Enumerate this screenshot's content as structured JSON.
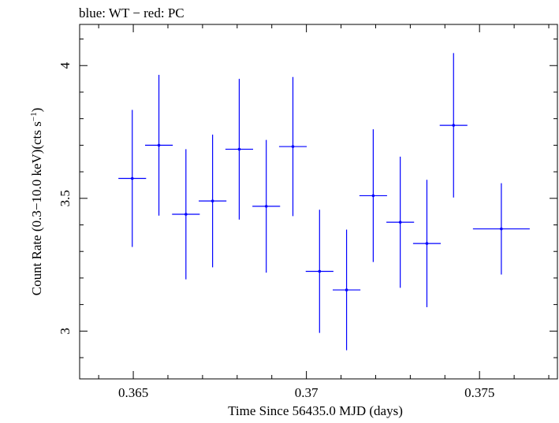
{
  "chart_data": {
    "type": "scatter",
    "title": "blue: WT − red: PC",
    "xlabel": "Time Since 56435.0 MJD (days)",
    "ylabel_main": "Count Rate (0.3−10.0 keV)(cts s",
    "ylabel_sup": "−1",
    "ylabel_tail": ")",
    "xlim": [
      0.36345,
      0.37725
    ],
    "ylim": [
      2.82,
      4.155
    ],
    "x_ticks": [
      0.365,
      0.37,
      0.375
    ],
    "x_tick_labels": [
      "0.365",
      "0.37",
      "0.375"
    ],
    "y_ticks": [
      3,
      3.5,
      4
    ],
    "y_tick_labels": [
      "3",
      "3.5",
      "4"
    ],
    "x_minor_step": 0.001,
    "y_minor_step": 0.1,
    "series": [
      {
        "color": "#0000ff",
        "points": [
          {
            "x": 0.36497,
            "xerr": 0.0004,
            "y": 3.575,
            "yerr": 0.258
          },
          {
            "x": 0.36574,
            "xerr": 0.0004,
            "y": 3.7,
            "yerr": 0.265
          },
          {
            "x": 0.36652,
            "xerr": 0.0004,
            "y": 3.44,
            "yerr": 0.245
          },
          {
            "x": 0.36729,
            "xerr": 0.0004,
            "y": 3.49,
            "yerr": 0.25
          },
          {
            "x": 0.36806,
            "xerr": 0.0004,
            "y": 3.685,
            "yerr": 0.265
          },
          {
            "x": 0.36884,
            "xerr": 0.0004,
            "y": 3.47,
            "yerr": 0.25
          },
          {
            "x": 0.36961,
            "xerr": 0.0004,
            "y": 3.695,
            "yerr": 0.262
          },
          {
            "x": 0.37038,
            "xerr": 0.0004,
            "y": 3.225,
            "yerr": 0.232
          },
          {
            "x": 0.37116,
            "xerr": 0.0004,
            "y": 3.155,
            "yerr": 0.227
          },
          {
            "x": 0.37193,
            "xerr": 0.0004,
            "y": 3.51,
            "yerr": 0.25
          },
          {
            "x": 0.37271,
            "xerr": 0.0004,
            "y": 3.41,
            "yerr": 0.247
          },
          {
            "x": 0.37348,
            "xerr": 0.0004,
            "y": 3.33,
            "yerr": 0.24
          },
          {
            "x": 0.37425,
            "xerr": 0.0004,
            "y": 3.775,
            "yerr": 0.272
          },
          {
            "x": 0.37563,
            "xerr": 0.00082,
            "y": 3.385,
            "yerr": 0.172
          }
        ]
      }
    ]
  }
}
